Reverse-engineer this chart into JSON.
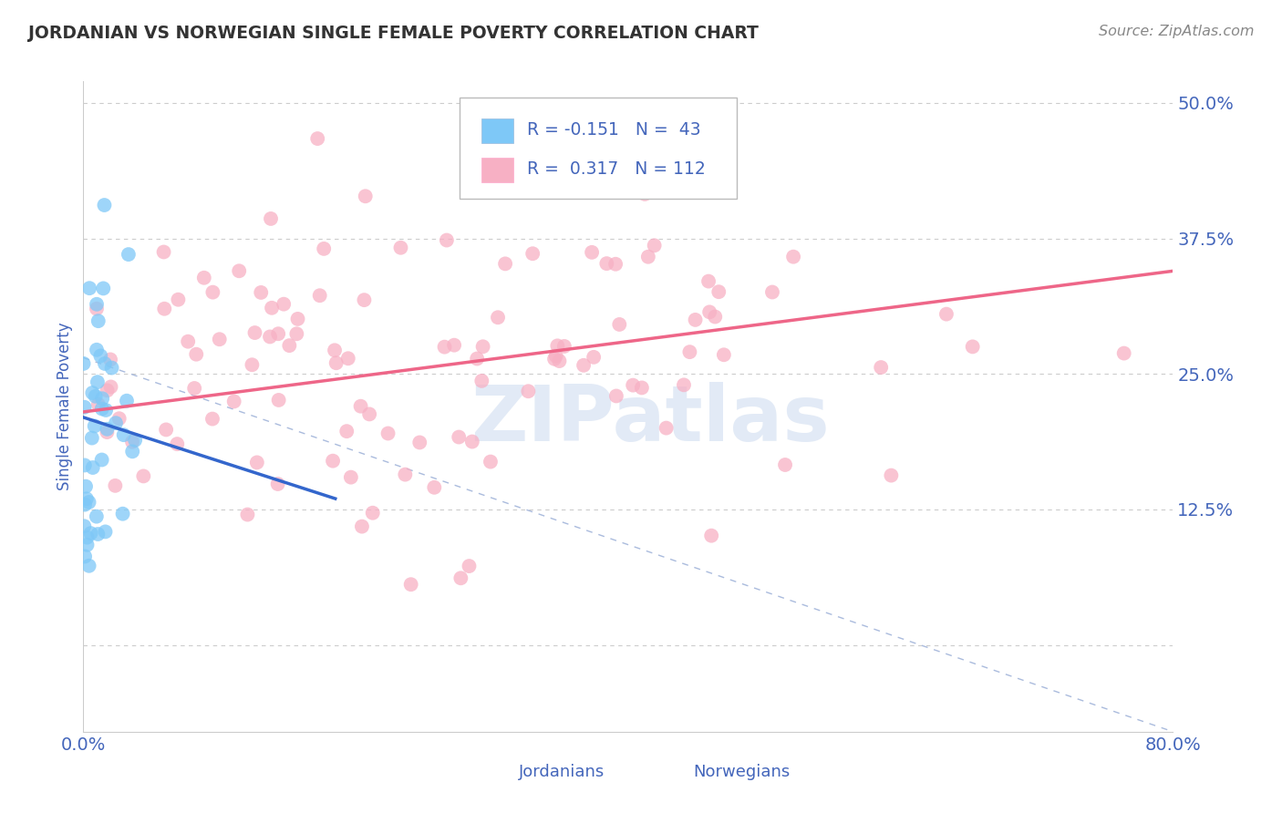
{
  "title": "JORDANIAN VS NORWEGIAN SINGLE FEMALE POVERTY CORRELATION CHART",
  "source_text": "Source: ZipAtlas.com",
  "ylabel": "Single Female Poverty",
  "xlim": [
    0.0,
    0.8
  ],
  "ylim": [
    -0.08,
    0.52
  ],
  "plot_ylim": [
    0.0,
    0.5
  ],
  "xticks": [
    0.0,
    0.8
  ],
  "xticklabels": [
    "0.0%",
    "80.0%"
  ],
  "ytick_positions": [
    0.0,
    0.125,
    0.25,
    0.375,
    0.5
  ],
  "ytick_labels": [
    "",
    "12.5%",
    "25.0%",
    "37.5%",
    "50.0%"
  ],
  "jordanian_color": "#7ec8f7",
  "norwegian_color": "#f7b0c4",
  "jordanian_line_color": "#3366cc",
  "norwegian_line_color": "#ee6688",
  "dashed_line_color": "#aabbdd",
  "watermark": "ZIPatlas",
  "watermark_color": "#d0ddf0",
  "background_color": "#ffffff",
  "grid_color": "#cccccc",
  "title_color": "#333333",
  "tick_label_color": "#4466bb",
  "jordanian_R": -0.151,
  "jordanian_N": 43,
  "norwegian_R": 0.317,
  "norwegian_N": 112,
  "seed": 42
}
